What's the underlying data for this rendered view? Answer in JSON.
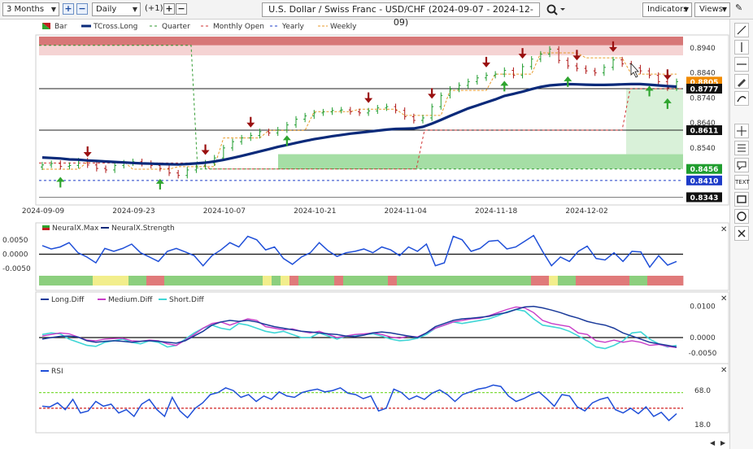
{
  "toolbar": {
    "range": "3 Months",
    "interval": "Daily",
    "step": "(+1)",
    "title": "U.S. Dollar / Swiss Franc - USD/CHF (2024-09-07 - 2024-12-09)",
    "indicators_label": "Indicators",
    "views_label": "Views"
  },
  "side_tools": [
    "line-tool",
    "vertical-line-tool",
    "horizontal-line-tool",
    "pen-tool",
    "curve-tool",
    "crosshair-tool",
    "fib-tool",
    "shape-tool",
    "text-tool",
    "rectangle-tool",
    "ellipse-tool",
    "close-tool"
  ],
  "side_text_label": "TEXT",
  "chart_data": [
    {
      "type": "line",
      "panel": "price",
      "legend": [
        "Bar",
        "TCross.Long",
        "Quarter",
        "Monthly Open",
        "Yearly",
        "Weekly"
      ],
      "x_ticks": [
        "2024-09-09",
        "2024-09-23",
        "2024-10-07",
        "2024-10-21",
        "2024-11-04",
        "2024-11-18",
        "2024-12-02"
      ],
      "y_ticks": [
        0.894,
        0.884,
        0.874,
        0.864,
        0.854
      ],
      "y_range": [
        0.8325,
        0.8985
      ],
      "price_labels": [
        {
          "value": 0.8805,
          "text": "0.8805",
          "color": "#f08a00"
        },
        {
          "value": 0.8777,
          "text": "0.8777",
          "color": "#111111"
        },
        {
          "value": 0.8611,
          "text": "0.8611",
          "color": "#111111"
        },
        {
          "value": 0.8456,
          "text": "0.8456",
          "color": "#1f9d2e"
        },
        {
          "value": 0.841,
          "text": "0.8410",
          "color": "#1e3cc8"
        },
        {
          "value": 0.8343,
          "text": "0.8343",
          "color": "#111111"
        }
      ],
      "close": [
        0.8472,
        0.8478,
        0.8466,
        0.847,
        0.8488,
        0.8472,
        0.8458,
        0.8452,
        0.847,
        0.848,
        0.8485,
        0.8478,
        0.847,
        0.8458,
        0.844,
        0.843,
        0.8452,
        0.8468,
        0.848,
        0.85,
        0.854,
        0.8565,
        0.858,
        0.859,
        0.8605,
        0.86,
        0.8612,
        0.8632,
        0.8655,
        0.8668,
        0.868,
        0.8684,
        0.869,
        0.8692,
        0.8685,
        0.868,
        0.8688,
        0.87,
        0.8705,
        0.869,
        0.8665,
        0.865,
        0.866,
        0.8705,
        0.875,
        0.8775,
        0.879,
        0.8805,
        0.882,
        0.883,
        0.8835,
        0.885,
        0.883,
        0.8865,
        0.8895,
        0.8915,
        0.8935,
        0.889,
        0.8868,
        0.8858,
        0.8848,
        0.884,
        0.8862,
        0.8892,
        0.8876,
        0.886,
        0.8848,
        0.883,
        0.8805,
        0.878,
        0.8805
      ],
      "tcross_long": [
        0.8502,
        0.85,
        0.8498,
        0.8494,
        0.8493,
        0.849,
        0.8488,
        0.8486,
        0.8484,
        0.8482,
        0.848,
        0.8478,
        0.8477,
        0.8476,
        0.8475,
        0.8474,
        0.8476,
        0.8478,
        0.8481,
        0.8486,
        0.8492,
        0.85,
        0.8508,
        0.8517,
        0.8526,
        0.8535,
        0.8544,
        0.8552,
        0.856,
        0.8568,
        0.8575,
        0.8581,
        0.8587,
        0.8592,
        0.8597,
        0.8601,
        0.8605,
        0.8609,
        0.8613,
        0.8616,
        0.8617,
        0.8618,
        0.8624,
        0.8637,
        0.8652,
        0.8668,
        0.8683,
        0.8698,
        0.871,
        0.8722,
        0.8734,
        0.8748,
        0.8756,
        0.8765,
        0.8775,
        0.8784,
        0.879,
        0.8793,
        0.8795,
        0.8794,
        0.8793,
        0.8792,
        0.8792,
        0.8793,
        0.8794,
        0.8795,
        0.8795,
        0.8793,
        0.879,
        0.8787,
        0.8785
      ],
      "quarter_level": [
        0.895,
        0.8456
      ],
      "monthly_open": [
        0.848,
        0.8456,
        0.8611,
        0.8777
      ],
      "yearly_level": 0.841,
      "weekly": [
        0.8455,
        0.8455,
        0.8455,
        0.8455,
        0.8455,
        0.8485,
        0.8485,
        0.8485,
        0.8485,
        0.8485,
        0.8455,
        0.8455,
        0.8455,
        0.8455,
        0.8455,
        0.8465,
        0.8465,
        0.8465,
        0.8465,
        0.8465,
        0.858,
        0.858,
        0.858,
        0.858,
        0.858,
        0.861,
        0.861,
        0.861,
        0.861,
        0.861,
        0.8685,
        0.8685,
        0.8685,
        0.8685,
        0.8685,
        0.8695,
        0.8695,
        0.8695,
        0.8695,
        0.8695,
        0.867,
        0.867,
        0.867,
        0.867,
        0.867,
        0.877,
        0.877,
        0.877,
        0.877,
        0.877,
        0.8835,
        0.8835,
        0.8835,
        0.8835,
        0.8835,
        0.892,
        0.892,
        0.892,
        0.892,
        0.892,
        0.89,
        0.89,
        0.89,
        0.89,
        0.89,
        0.8835,
        0.8835,
        0.8835,
        0.8835,
        0.8835,
        0.8835
      ],
      "down_signals": [
        5,
        18,
        23,
        36,
        43,
        49,
        53,
        59,
        63,
        69
      ],
      "up_signals": [
        2,
        13,
        27,
        51,
        58,
        67,
        69
      ]
    },
    {
      "type": "line",
      "panel": "neuralx",
      "legend": [
        "NeuralX.Max",
        "NeuralX.Strength"
      ],
      "y_ticks": [
        0.005,
        0.0,
        -0.005
      ],
      "y_tick_labels": [
        "0.0050",
        "0.0000",
        "-0.0050"
      ],
      "y_range": [
        -0.0072,
        0.0072
      ],
      "strength": [
        0.003,
        0.0018,
        0.0025,
        0.004,
        0.0005,
        -0.001,
        -0.003,
        0.002,
        0.001,
        0.002,
        0.0035,
        0.0005,
        -0.001,
        -0.0025,
        0.001,
        0.002,
        0.0008,
        -0.0005,
        -0.004,
        -0.0005,
        0.0015,
        0.004,
        0.0025,
        0.0062,
        0.005,
        0.0015,
        0.0025,
        -0.0015,
        -0.0035,
        -0.001,
        0.0005,
        0.004,
        0.0012,
        -0.0008,
        0.0005,
        0.001,
        0.0018,
        0.0005,
        0.0025,
        0.0015,
        -0.0005,
        0.0025,
        0.001,
        0.0035,
        -0.004,
        -0.003,
        0.0062,
        0.005,
        0.001,
        0.002,
        0.0045,
        0.0048,
        0.0018,
        0.0025,
        0.0045,
        0.0065,
        0.001,
        -0.004,
        -0.001,
        -0.0025,
        0.001,
        0.0028,
        -0.0015,
        -0.002,
        0.0005,
        -0.0025,
        0.001,
        0.0008,
        -0.0045,
        -0.0005,
        -0.0038,
        -0.0025
      ],
      "max_colors": [
        "g",
        "g",
        "g",
        "g",
        "g",
        "g",
        "y",
        "y",
        "y",
        "y",
        "g",
        "g",
        "r",
        "r",
        "g",
        "g",
        "g",
        "g",
        "g",
        "g",
        "g",
        "g",
        "g",
        "g",
        "g",
        "y",
        "g",
        "y",
        "r",
        "g",
        "g",
        "g",
        "g",
        "r",
        "g",
        "g",
        "g",
        "g",
        "g",
        "r",
        "g",
        "g",
        "g",
        "g",
        "g",
        "g",
        "g",
        "g",
        "g",
        "g",
        "g",
        "g",
        "g",
        "g",
        "g",
        "r",
        "r",
        "y",
        "g",
        "g",
        "r",
        "r",
        "r",
        "r",
        "r",
        "r",
        "g",
        "g",
        "r",
        "r",
        "r",
        "r"
      ]
    },
    {
      "type": "line",
      "panel": "diffs",
      "legend": [
        "Long.Diff",
        "Medium.Diff",
        "Short.Diff"
      ],
      "y_ticks": [
        0.01,
        0.0,
        -0.005
      ],
      "y_tick_labels": [
        "0.0100",
        "0.0000",
        "-0.0050"
      ],
      "y_range": [
        -0.0065,
        0.0112
      ],
      "long": [
        -0.0005,
        0.0,
        0.0004,
        0.0005,
        0.0002,
        -0.001,
        -0.0015,
        -0.0012,
        -0.001,
        -0.0012,
        -0.0015,
        -0.0012,
        -0.001,
        -0.0012,
        -0.0015,
        -0.0018,
        -0.001,
        0.0005,
        0.002,
        0.004,
        0.005,
        0.0055,
        0.0052,
        0.0055,
        0.005,
        0.0042,
        0.0035,
        0.003,
        0.0025,
        0.002,
        0.0018,
        0.0015,
        0.0012,
        0.001,
        0.0005,
        0.0003,
        0.0008,
        0.0015,
        0.0018,
        0.0015,
        0.001,
        0.0005,
        0.0,
        0.0015,
        0.0035,
        0.0045,
        0.0055,
        0.006,
        0.0062,
        0.0065,
        0.0068,
        0.0075,
        0.008,
        0.009,
        0.0098,
        0.01,
        0.0095,
        0.0088,
        0.008,
        0.007,
        0.0062,
        0.0052,
        0.0045,
        0.004,
        0.003,
        0.0015,
        0.0005,
        -0.0005,
        -0.0015,
        -0.002,
        -0.0025,
        -0.003
      ],
      "medium": [
        0.0005,
        0.001,
        0.0015,
        0.0012,
        0.0002,
        -0.0008,
        -0.001,
        -0.0005,
        -0.0003,
        -0.0002,
        -0.001,
        -0.0012,
        -0.0008,
        -0.001,
        -0.002,
        -0.0025,
        -0.0008,
        0.001,
        0.003,
        0.0045,
        0.005,
        0.004,
        0.005,
        0.006,
        0.0055,
        0.0035,
        0.003,
        0.0025,
        0.0028,
        0.002,
        0.0015,
        0.002,
        0.001,
        0.0,
        0.0005,
        0.001,
        0.0012,
        0.0015,
        0.001,
        0.0002,
        -0.0002,
        0.0005,
        0.0002,
        0.0015,
        0.003,
        0.004,
        0.005,
        0.0055,
        0.006,
        0.0062,
        0.007,
        0.008,
        0.009,
        0.0098,
        0.0095,
        0.008,
        0.0055,
        0.0045,
        0.004,
        0.0035,
        0.0015,
        0.001,
        -0.001,
        -0.0015,
        -0.0008,
        -0.0015,
        -0.001,
        -0.0015,
        -0.0025,
        -0.0022,
        -0.0028,
        -0.0032
      ],
      "short": [
        0.001,
        0.0015,
        0.0012,
        -0.0005,
        -0.0015,
        -0.0025,
        -0.0028,
        -0.0015,
        -0.001,
        -0.0005,
        -0.0015,
        -0.002,
        -0.001,
        -0.0015,
        -0.003,
        -0.0025,
        -0.0005,
        0.0015,
        0.003,
        0.004,
        0.003,
        0.0025,
        0.0045,
        0.004,
        0.003,
        0.002,
        0.0015,
        0.002,
        0.001,
        0.0,
        0.0,
        0.0015,
        0.0005,
        -0.0005,
        0.0005,
        0.0008,
        0.001,
        0.0012,
        0.0005,
        -0.0005,
        -0.001,
        -0.0008,
        -0.0002,
        0.001,
        0.003,
        0.004,
        0.005,
        0.0045,
        0.005,
        0.0055,
        0.006,
        0.007,
        0.0082,
        0.009,
        0.0085,
        0.006,
        0.004,
        0.0035,
        0.003,
        0.002,
        0.0005,
        -0.001,
        -0.003,
        -0.0035,
        -0.0025,
        -0.001,
        0.0015,
        0.0018,
        -0.0005,
        -0.002,
        -0.003,
        -0.0025
      ]
    },
    {
      "type": "line",
      "panel": "rsi",
      "legend": [
        "RSI"
      ],
      "y_ticks": [
        68.0,
        18.0
      ],
      "y_tick_labels": [
        "68.0",
        "18.0"
      ],
      "y_range": [
        12,
        92
      ],
      "upper_level": 65,
      "lower_level": 42,
      "rsi": [
        45,
        44,
        50,
        40,
        55,
        35,
        38,
        52,
        45,
        48,
        35,
        40,
        30,
        48,
        55,
        40,
        30,
        58,
        38,
        28,
        42,
        50,
        62,
        65,
        72,
        68,
        58,
        62,
        52,
        60,
        55,
        66,
        60,
        58,
        65,
        68,
        70,
        66,
        68,
        72,
        64,
        62,
        56,
        60,
        38,
        42,
        70,
        65,
        55,
        60,
        55,
        64,
        69,
        62,
        52,
        62,
        66,
        70,
        72,
        76,
        74,
        60,
        52,
        56,
        62,
        66,
        56,
        45,
        62,
        60,
        44,
        38
      ],
      "rsi_tail": [
        50,
        55,
        58,
        40,
        35,
        42,
        34,
        44,
        30,
        36,
        24,
        34
      ]
    }
  ]
}
